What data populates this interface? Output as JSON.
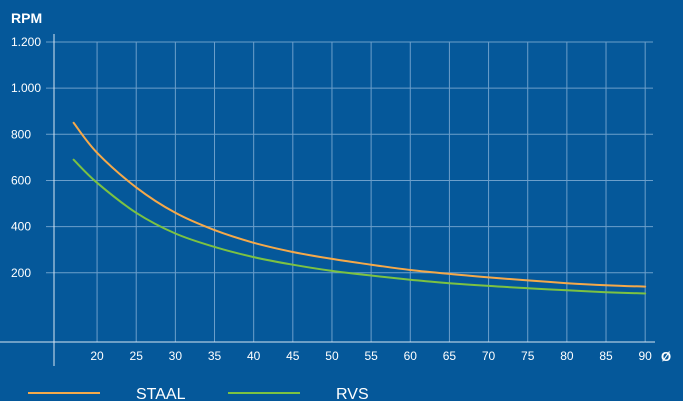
{
  "chart_data": {
    "type": "line",
    "title": "",
    "ylabel": "RPM",
    "xlabel": "Ø",
    "xlim": [
      14.5,
      91
    ],
    "ylim": [
      -100,
      1200
    ],
    "grid": true,
    "legend_position": "bottom-left",
    "x_ticks": [
      20,
      25,
      30,
      35,
      40,
      45,
      50,
      55,
      60,
      65,
      70,
      75,
      80,
      85,
      90
    ],
    "y_ticks": [
      200,
      400,
      600,
      800,
      1000,
      1200
    ],
    "y_tick_labels": [
      "200",
      "400",
      "600",
      "800",
      "1.000",
      "1.200"
    ],
    "series": [
      {
        "name": "STAAL",
        "color": "#f5a94a",
        "x": [
          17,
          20,
          25,
          30,
          35,
          40,
          45,
          50,
          55,
          60,
          65,
          70,
          75,
          80,
          85,
          90
        ],
        "y": [
          850,
          720,
          570,
          460,
          385,
          330,
          290,
          260,
          235,
          212,
          195,
          180,
          167,
          155,
          146,
          140
        ]
      },
      {
        "name": "RVS",
        "color": "#7cc242",
        "x": [
          17,
          20,
          25,
          30,
          35,
          40,
          45,
          50,
          55,
          60,
          65,
          70,
          75,
          80,
          85,
          90
        ],
        "y": [
          690,
          590,
          460,
          370,
          312,
          268,
          235,
          208,
          188,
          170,
          155,
          143,
          133,
          124,
          116,
          110
        ]
      }
    ]
  },
  "colors": {
    "background": "#05589a",
    "grid": "#6c9fcb",
    "axis": "#d8e6f3",
    "text": "#ffffff"
  }
}
